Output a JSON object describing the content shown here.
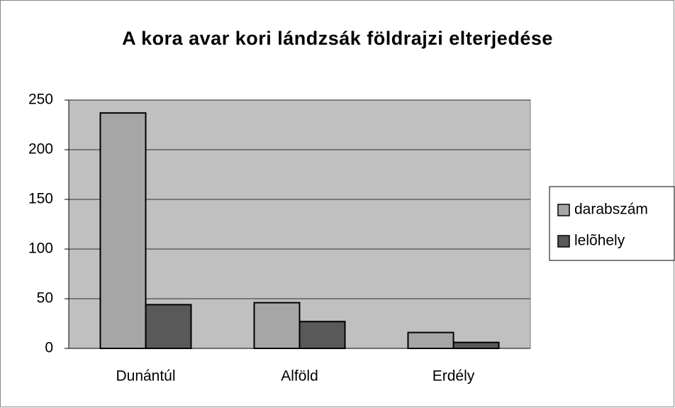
{
  "chart_data": {
    "type": "bar",
    "title": "A kora avar kori lándzsák földrajzi elterjedése",
    "categories": [
      "Dunántúl",
      "Alföld",
      "Erdély"
    ],
    "series": [
      {
        "name": "darabszám",
        "color": "#a6a6a6",
        "values": [
          237,
          46,
          16
        ]
      },
      {
        "name": "lelõhely",
        "color": "#595959",
        "values": [
          44,
          27,
          6
        ]
      }
    ],
    "ylim": [
      0,
      250
    ],
    "yticks": [
      0,
      50,
      100,
      150,
      200,
      250
    ],
    "grid": true,
    "legend": "right"
  }
}
